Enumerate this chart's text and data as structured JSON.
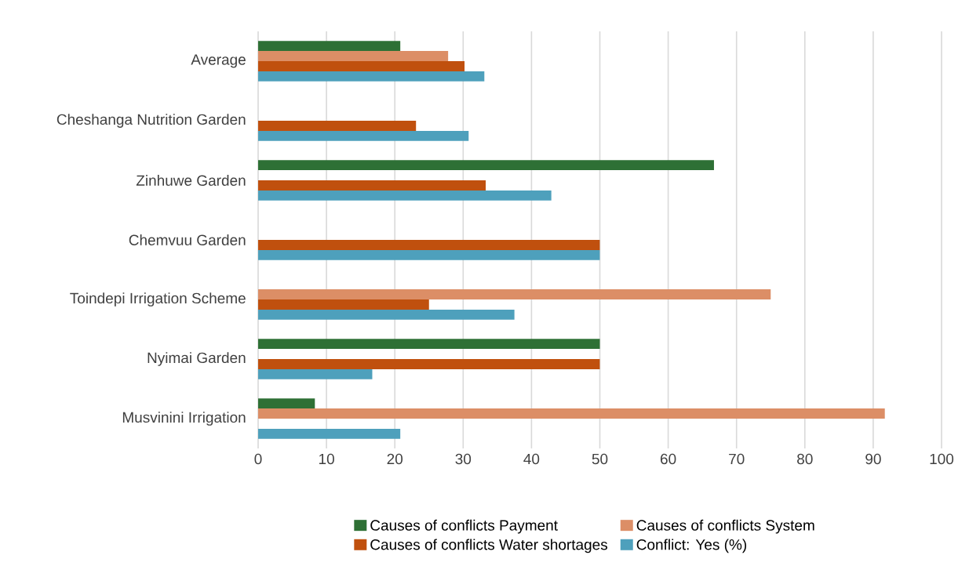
{
  "chart_data": {
    "type": "bar",
    "orientation": "horizontal",
    "categories": [
      "Average",
      "Cheshanga Nutrition Garden",
      "Zinhuwe Garden",
      "Chemvuu Garden",
      "Toindepi Irrigation Scheme",
      "Nyimai Garden",
      "Musvinini Irrigation"
    ],
    "series": [
      {
        "name": "Causes of conflicts Payment",
        "color": "#2e7035",
        "values": [
          20.8,
          null,
          66.7,
          null,
          null,
          50,
          8.3
        ]
      },
      {
        "name": "Causes of conflicts System",
        "color": "#dc8e66",
        "values": [
          27.8,
          null,
          null,
          null,
          75,
          null,
          91.7
        ]
      },
      {
        "name": "Causes of conflicts Water shortages",
        "color": "#c0500e",
        "values": [
          30.2,
          23.1,
          33.3,
          50,
          25,
          50,
          null
        ]
      },
      {
        "name": "Conflict: Yes (%)",
        "color": "#4ea0bc",
        "values": [
          33.1,
          30.8,
          42.9,
          50,
          37.5,
          16.7,
          20.8
        ]
      }
    ],
    "xlim": [
      0,
      100
    ],
    "xticks": [
      0,
      10,
      20,
      30,
      40,
      50,
      60,
      70,
      80,
      90,
      100
    ],
    "grid": "x",
    "legend": "bottom"
  }
}
